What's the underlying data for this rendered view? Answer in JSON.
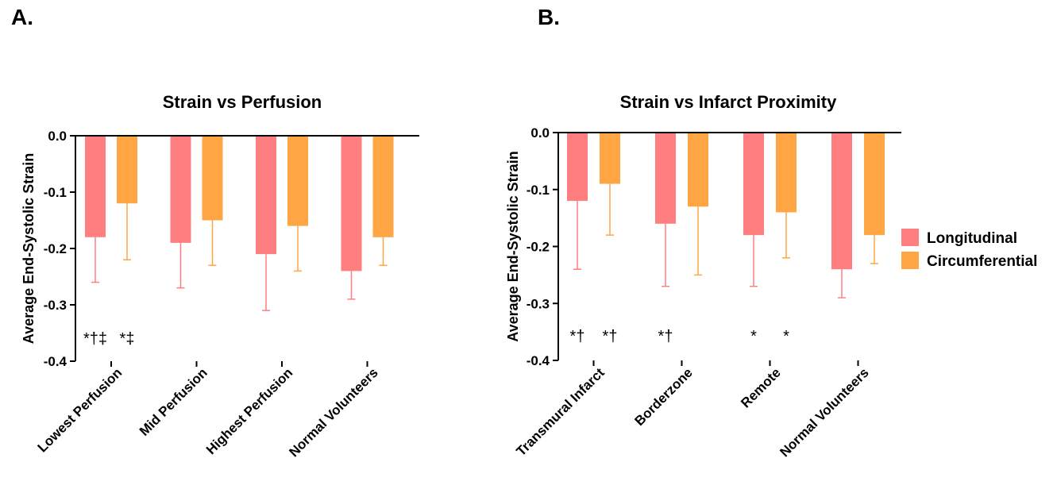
{
  "panels": {
    "a": "A.",
    "b": "B."
  },
  "colors": {
    "longitudinal": "#ff7f81",
    "circumferential": "#ffa544",
    "axis": "#000000"
  },
  "legend": {
    "position": "right",
    "items": [
      "Longitudinal",
      "Circumferential"
    ]
  },
  "chart_data": [
    {
      "type": "bar",
      "title": "Strain vs Perfusion",
      "ylabel": "Average End-Systolic Strain",
      "xlabel": "",
      "ylim": [
        -0.4,
        0.0
      ],
      "yticks": [
        "0.0",
        "-0.1",
        "-0.2",
        "-0.3",
        "-0.4"
      ],
      "categories": [
        "Lowest Perfusion",
        "Mid Perfusion",
        "Highest Perfusion",
        "Normal Volunteers"
      ],
      "series": [
        {
          "name": "Longitudinal",
          "values": [
            -0.18,
            -0.19,
            -0.21,
            -0.24
          ],
          "error": [
            0.08,
            0.08,
            0.1,
            0.05
          ]
        },
        {
          "name": "Circumferential",
          "values": [
            -0.12,
            -0.15,
            -0.16,
            -0.18
          ],
          "error": [
            0.1,
            0.08,
            0.08,
            0.05
          ]
        }
      ],
      "annotations": [
        {
          "category": 0,
          "series": 0,
          "text": "*†‡"
        },
        {
          "category": 0,
          "series": 1,
          "text": "*‡"
        }
      ]
    },
    {
      "type": "bar",
      "title": "Strain vs Infarct Proximity",
      "ylabel": "Average End-Systolic Strain",
      "xlabel": "",
      "ylim": [
        -0.4,
        0.0
      ],
      "yticks": [
        "0.0",
        "-0.1",
        "-0.2",
        "-0.3",
        "-0.4"
      ],
      "categories": [
        "Transmural Infarct",
        "Borderzone",
        "Remote",
        "Normal Volunteers"
      ],
      "series": [
        {
          "name": "Longitudinal",
          "values": [
            -0.12,
            -0.16,
            -0.18,
            -0.24
          ],
          "error": [
            0.12,
            0.11,
            0.09,
            0.05
          ]
        },
        {
          "name": "Circumferential",
          "values": [
            -0.09,
            -0.13,
            -0.14,
            -0.18
          ],
          "error": [
            0.09,
            0.12,
            0.08,
            0.05
          ]
        }
      ],
      "annotations": [
        {
          "category": 0,
          "series": 0,
          "text": "*†"
        },
        {
          "category": 0,
          "series": 1,
          "text": "*†"
        },
        {
          "category": 1,
          "series": 0,
          "text": "*†"
        },
        {
          "category": 2,
          "series": 0,
          "text": "*"
        },
        {
          "category": 2,
          "series": 1,
          "text": "*"
        }
      ]
    }
  ]
}
